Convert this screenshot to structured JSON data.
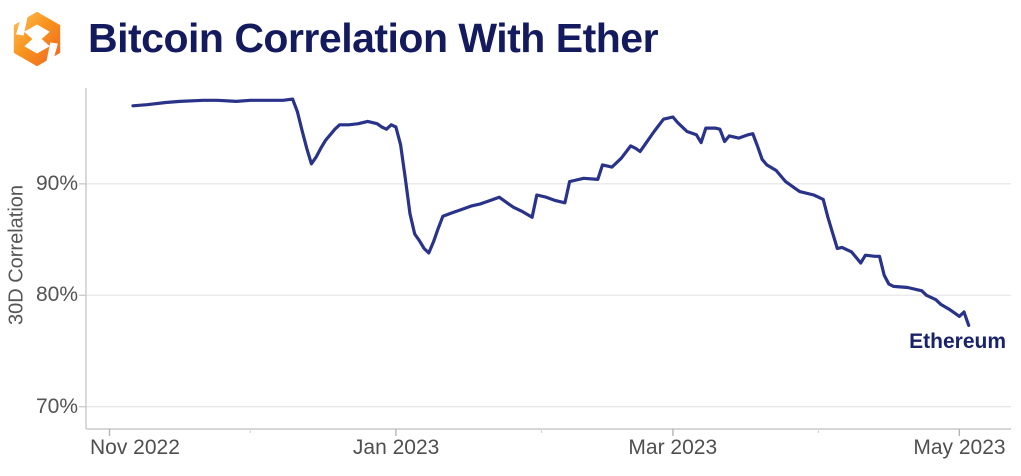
{
  "header": {
    "title": "Bitcoin Correlation With Ether"
  },
  "colors": {
    "line": "#283389",
    "title": "#131A5E",
    "series_label": "#1B2368",
    "axis": "#C9C9C9",
    "grid": "#E8E8E8",
    "tick": "#B5B5B5",
    "tick_minor": "#D8D8D8",
    "tick_label": "#545454",
    "logo_orange_light": "#FFC35C",
    "logo_orange_mid": "#F7941E",
    "logo_orange_deep": "#F26322"
  },
  "chart_data": {
    "type": "line",
    "title": "Bitcoin Correlation With Ether",
    "xlabel": "",
    "ylabel": "30D Correlation",
    "grid": true,
    "legend_position": "end-of-line-label",
    "ylim": [
      68.0,
      98.6
    ],
    "xlim": [
      "2022-10-27",
      "2023-05-12"
    ],
    "y_ticks": [
      {
        "value": 90,
        "label": "90%"
      },
      {
        "value": 80,
        "label": "80%"
      },
      {
        "value": 70,
        "label": "70%"
      }
    ],
    "x_ticks": [
      {
        "date": "2022-11-01",
        "label": "Nov 2022"
      },
      {
        "date": "2023-01-01",
        "label": "Jan 2023"
      },
      {
        "date": "2023-03-01",
        "label": "Mar 2023"
      },
      {
        "date": "2023-05-01",
        "label": "May 2023"
      }
    ],
    "x_minor_ticks": [
      "2022-12-01",
      "2023-02-01",
      "2023-04-01"
    ],
    "series": [
      {
        "name": "Ethereum",
        "color": "#283389",
        "points": [
          [
            "2022-11-06",
            97.0
          ],
          [
            "2022-11-09",
            97.1
          ],
          [
            "2022-11-13",
            97.3
          ],
          [
            "2022-11-16",
            97.4
          ],
          [
            "2022-11-21",
            97.5
          ],
          [
            "2022-11-24",
            97.5
          ],
          [
            "2022-11-28",
            97.4
          ],
          [
            "2022-12-01",
            97.5
          ],
          [
            "2022-12-04",
            97.5
          ],
          [
            "2022-12-08",
            97.5
          ],
          [
            "2022-12-10",
            97.6
          ],
          [
            "2022-12-11",
            96.5
          ],
          [
            "2022-12-12",
            94.8
          ],
          [
            "2022-12-13",
            93.2
          ],
          [
            "2022-12-14",
            91.8
          ],
          [
            "2022-12-15",
            92.4
          ],
          [
            "2022-12-16",
            93.2
          ],
          [
            "2022-12-17",
            93.9
          ],
          [
            "2022-12-18",
            94.4
          ],
          [
            "2022-12-19",
            94.9
          ],
          [
            "2022-12-20",
            95.3
          ],
          [
            "2022-12-22",
            95.3
          ],
          [
            "2022-12-24",
            95.4
          ],
          [
            "2022-12-26",
            95.6
          ],
          [
            "2022-12-28",
            95.4
          ],
          [
            "2022-12-29",
            95.1
          ],
          [
            "2022-12-30",
            94.9
          ],
          [
            "2022-12-31",
            95.3
          ],
          [
            "2023-01-01",
            95.1
          ],
          [
            "2023-01-02",
            93.5
          ],
          [
            "2023-01-03",
            90.5
          ],
          [
            "2023-01-04",
            87.3
          ],
          [
            "2023-01-05",
            85.5
          ],
          [
            "2023-01-06",
            84.9
          ],
          [
            "2023-01-07",
            84.2
          ],
          [
            "2023-01-08",
            83.8
          ],
          [
            "2023-01-09",
            84.8
          ],
          [
            "2023-01-10",
            86.0
          ],
          [
            "2023-01-11",
            87.1
          ],
          [
            "2023-01-13",
            87.4
          ],
          [
            "2023-01-15",
            87.7
          ],
          [
            "2023-01-17",
            88.0
          ],
          [
            "2023-01-19",
            88.2
          ],
          [
            "2023-01-21",
            88.5
          ],
          [
            "2023-01-23",
            88.8
          ],
          [
            "2023-01-24",
            88.5
          ],
          [
            "2023-01-25",
            88.2
          ],
          [
            "2023-01-26",
            87.9
          ],
          [
            "2023-01-28",
            87.5
          ],
          [
            "2023-01-30",
            87.0
          ],
          [
            "2023-01-31",
            89.0
          ],
          [
            "2023-02-02",
            88.8
          ],
          [
            "2023-02-04",
            88.5
          ],
          [
            "2023-02-06",
            88.3
          ],
          [
            "2023-02-07",
            90.2
          ],
          [
            "2023-02-08",
            90.3
          ],
          [
            "2023-02-10",
            90.5
          ],
          [
            "2023-02-13",
            90.4
          ],
          [
            "2023-02-14",
            91.7
          ],
          [
            "2023-02-16",
            91.5
          ],
          [
            "2023-02-18",
            92.3
          ],
          [
            "2023-02-20",
            93.4
          ],
          [
            "2023-02-21",
            93.2
          ],
          [
            "2023-02-22",
            92.9
          ],
          [
            "2023-02-23",
            93.5
          ],
          [
            "2023-02-25",
            94.7
          ],
          [
            "2023-02-27",
            95.8
          ],
          [
            "2023-03-01",
            96.0
          ],
          [
            "2023-03-02",
            95.5
          ],
          [
            "2023-03-04",
            94.7
          ],
          [
            "2023-03-06",
            94.4
          ],
          [
            "2023-03-07",
            93.7
          ],
          [
            "2023-03-08",
            95.0
          ],
          [
            "2023-03-10",
            95.0
          ],
          [
            "2023-03-11",
            94.9
          ],
          [
            "2023-03-12",
            93.8
          ],
          [
            "2023-03-13",
            94.3
          ],
          [
            "2023-03-15",
            94.1
          ],
          [
            "2023-03-17",
            94.4
          ],
          [
            "2023-03-18",
            94.5
          ],
          [
            "2023-03-19",
            93.4
          ],
          [
            "2023-03-20",
            92.2
          ],
          [
            "2023-03-21",
            91.7
          ],
          [
            "2023-03-23",
            91.2
          ],
          [
            "2023-03-25",
            90.2
          ],
          [
            "2023-03-27",
            89.6
          ],
          [
            "2023-03-28",
            89.3
          ],
          [
            "2023-03-31",
            89.0
          ],
          [
            "2023-04-01",
            88.8
          ],
          [
            "2023-04-02",
            88.6
          ],
          [
            "2023-04-03",
            87.0
          ],
          [
            "2023-04-04",
            85.6
          ],
          [
            "2023-04-05",
            84.2
          ],
          [
            "2023-04-06",
            84.3
          ],
          [
            "2023-04-08",
            83.9
          ],
          [
            "2023-04-09",
            83.4
          ],
          [
            "2023-04-10",
            82.9
          ],
          [
            "2023-04-11",
            83.6
          ],
          [
            "2023-04-13",
            83.5
          ],
          [
            "2023-04-14",
            83.5
          ],
          [
            "2023-04-15",
            81.8
          ],
          [
            "2023-04-16",
            81.0
          ],
          [
            "2023-04-17",
            80.8
          ],
          [
            "2023-04-20",
            80.7
          ],
          [
            "2023-04-23",
            80.4
          ],
          [
            "2023-04-24",
            80.0
          ],
          [
            "2023-04-26",
            79.6
          ],
          [
            "2023-04-27",
            79.2
          ],
          [
            "2023-04-29",
            78.7
          ],
          [
            "2023-04-30",
            78.4
          ],
          [
            "2023-05-01",
            78.1
          ],
          [
            "2023-05-02",
            78.5
          ],
          [
            "2023-05-03",
            77.3
          ]
        ]
      }
    ]
  }
}
